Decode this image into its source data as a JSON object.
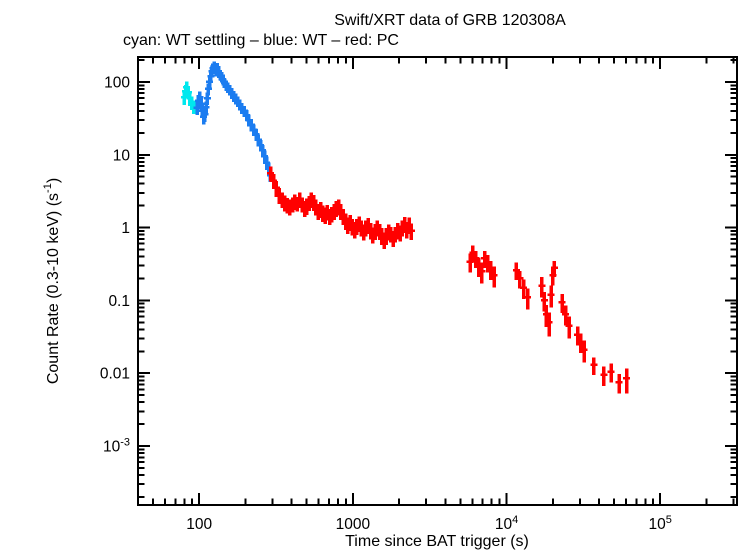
{
  "title": "Swift/XRT data of GRB 120308A",
  "subtitle": "cyan: WT settling – blue: WT – red: PC",
  "chart_data": {
    "type": "scatter",
    "title": "Swift/XRT data of GRB 120308A",
    "subtitle": "cyan: WT settling – blue: WT – red: PC",
    "xlabel": "Time since BAT trigger (s)",
    "ylabel_parts": [
      {
        "t": "Count Rate (0.3-10 keV) (s"
      },
      {
        "sup": "-1"
      },
      {
        "t": ")"
      }
    ],
    "xscale": "log",
    "yscale": "log",
    "xlim": [
      40,
      316000
    ],
    "ylim": [
      0.000155,
      220
    ],
    "grid": false,
    "legend_position": "subtitle-top-left",
    "background": "#ffffff",
    "axis_color": "#000000",
    "x_ticks": [
      {
        "v": 100,
        "t": "100"
      },
      {
        "v": 1000,
        "t": "1000"
      },
      {
        "v": 10000,
        "t": "10",
        "sup": "4"
      },
      {
        "v": 100000,
        "t": "10",
        "sup": "5"
      }
    ],
    "y_ticks": [
      {
        "v": 100,
        "t": "100"
      },
      {
        "v": 10,
        "t": "10"
      },
      {
        "v": 1,
        "t": "1"
      },
      {
        "v": 0.1,
        "t": "0.1"
      },
      {
        "v": 0.01,
        "t": "0.01"
      },
      {
        "v": 0.001,
        "t": "10",
        "sup": "-3"
      }
    ],
    "series": [
      {
        "id": "wt-settling",
        "name": "WT settling",
        "color": "#00e8ee",
        "points": [
          [
            80,
            62,
            14
          ],
          [
            81.5,
            75,
            16
          ],
          [
            83,
            84,
            18
          ],
          [
            85,
            72,
            15
          ],
          [
            87,
            60,
            13
          ],
          [
            89.5,
            52,
            11
          ],
          [
            92,
            46,
            10
          ]
        ]
      },
      {
        "id": "wt",
        "name": "WT",
        "color": "#1b7cf0",
        "points": [
          [
            97,
            44,
            9
          ],
          [
            99,
            55,
            11
          ],
          [
            101,
            62,
            12
          ],
          [
            103,
            50,
            10
          ],
          [
            105,
            40,
            8
          ],
          [
            107,
            33,
            7
          ],
          [
            109,
            36,
            8
          ],
          [
            111,
            45,
            9
          ],
          [
            113,
            60,
            12
          ],
          [
            115,
            80,
            15
          ],
          [
            117,
            100,
            18
          ],
          [
            119,
            120,
            20
          ],
          [
            121,
            140,
            23
          ],
          [
            123,
            155,
            25
          ],
          [
            125,
            165,
            26
          ],
          [
            127,
            150,
            24
          ],
          [
            129,
            142,
            23
          ],
          [
            131,
            158,
            25
          ],
          [
            134,
            135,
            22
          ],
          [
            137,
            125,
            20
          ],
          [
            140,
            118,
            19
          ],
          [
            143,
            108,
            18
          ],
          [
            146,
            98,
            16
          ],
          [
            150,
            90,
            15
          ],
          [
            154,
            84,
            14
          ],
          [
            158,
            78,
            13
          ],
          [
            163,
            70,
            12
          ],
          [
            168,
            64,
            11
          ],
          [
            173,
            59,
            10
          ],
          [
            178,
            54,
            9
          ],
          [
            184,
            49,
            8.5
          ],
          [
            190,
            44,
            7.5
          ],
          [
            197,
            40,
            7
          ],
          [
            204,
            35,
            6
          ],
          [
            211,
            30,
            5.5
          ],
          [
            219,
            26,
            5
          ],
          [
            227,
            22,
            4
          ],
          [
            235,
            19,
            3.5
          ],
          [
            243,
            16,
            3
          ],
          [
            251,
            13.5,
            2.5
          ],
          [
            259,
            11.5,
            2.2
          ],
          [
            267,
            9.5,
            1.9
          ],
          [
            275,
            7.8,
            1.6
          ],
          [
            283,
            6.4,
            1.4
          ],
          [
            291,
            5.4,
            1.2
          ]
        ]
      },
      {
        "id": "pc",
        "name": "PC",
        "color": "#ff0000",
        "points": [
          [
            292,
            5.6,
            1.3
          ],
          [
            305,
            4.4,
            1.0
          ],
          [
            318,
            3.5,
            0.85
          ],
          [
            332,
            2.8,
            0.7
          ],
          [
            346,
            2.45,
            0.6
          ],
          [
            360,
            2.2,
            0.55
          ],
          [
            375,
            2.05,
            0.5
          ],
          [
            390,
            1.95,
            0.48
          ],
          [
            405,
            2.1,
            0.5
          ],
          [
            420,
            2.3,
            0.55
          ],
          [
            436,
            2.15,
            0.5
          ],
          [
            452,
            2.45,
            0.6
          ],
          [
            468,
            2.1,
            0.5
          ],
          [
            485,
            1.85,
            0.45
          ],
          [
            502,
            2.0,
            0.5
          ],
          [
            520,
            2.2,
            0.52
          ],
          [
            538,
            2.45,
            0.6
          ],
          [
            556,
            2.25,
            0.55
          ],
          [
            575,
            1.95,
            0.48
          ],
          [
            595,
            1.7,
            0.42
          ],
          [
            616,
            1.8,
            0.45
          ],
          [
            637,
            1.6,
            0.4
          ],
          [
            659,
            1.5,
            0.38
          ],
          [
            682,
            1.65,
            0.4
          ],
          [
            706,
            1.45,
            0.36
          ],
          [
            731,
            1.55,
            0.38
          ],
          [
            756,
            1.7,
            0.42
          ],
          [
            782,
            1.85,
            0.45
          ],
          [
            809,
            1.95,
            0.48
          ],
          [
            837,
            1.7,
            0.42
          ],
          [
            866,
            1.45,
            0.36
          ],
          [
            896,
            1.25,
            0.32
          ],
          [
            927,
            1.1,
            0.28
          ],
          [
            959,
            1.2,
            0.3
          ],
          [
            992,
            1.05,
            0.27
          ],
          [
            1026,
            0.95,
            0.24
          ],
          [
            1062,
            1.05,
            0.26
          ],
          [
            1099,
            1.15,
            0.28
          ],
          [
            1137,
            1.0,
            0.25
          ],
          [
            1176,
            0.88,
            0.22
          ],
          [
            1217,
            1.0,
            0.25
          ],
          [
            1259,
            1.08,
            0.27
          ],
          [
            1303,
            0.92,
            0.23
          ],
          [
            1348,
            0.8,
            0.2
          ],
          [
            1395,
            0.9,
            0.22
          ],
          [
            1443,
            1.0,
            0.25
          ],
          [
            1493,
            0.9,
            0.22
          ],
          [
            1545,
            0.78,
            0.2
          ],
          [
            1598,
            0.68,
            0.17
          ],
          [
            1654,
            0.78,
            0.2
          ],
          [
            1711,
            0.88,
            0.22
          ],
          [
            1770,
            0.82,
            0.2
          ],
          [
            1831,
            0.72,
            0.18
          ],
          [
            1894,
            0.82,
            0.2
          ],
          [
            1960,
            0.92,
            0.23
          ],
          [
            2028,
            0.85,
            0.21
          ],
          [
            2098,
            1.0,
            0.25
          ],
          [
            2171,
            1.12,
            0.28
          ],
          [
            2246,
            0.95,
            0.24
          ],
          [
            2324,
            1.1,
            0.28
          ],
          [
            2405,
            0.9,
            0.23
          ],
          [
            5800,
            0.34,
            0.1
          ],
          [
            6050,
            0.45,
            0.12
          ],
          [
            6300,
            0.38,
            0.1
          ],
          [
            6600,
            0.3,
            0.09
          ],
          [
            6900,
            0.25,
            0.08
          ],
          [
            7200,
            0.38,
            0.1
          ],
          [
            7550,
            0.33,
            0.09
          ],
          [
            7900,
            0.27,
            0.08
          ],
          [
            8300,
            0.22,
            0.07
          ],
          [
            11600,
            0.26,
            0.07
          ],
          [
            12200,
            0.2,
            0.055
          ],
          [
            12900,
            0.15,
            0.045
          ],
          [
            13700,
            0.11,
            0.035
          ],
          [
            17000,
            0.16,
            0.05
          ],
          [
            17600,
            0.1,
            0.03
          ],
          [
            18200,
            0.065,
            0.022
          ],
          [
            18900,
            0.05,
            0.018
          ],
          [
            19500,
            0.12,
            0.04
          ],
          [
            20000,
            0.22,
            0.06
          ],
          [
            20500,
            0.28,
            0.07
          ],
          [
            23000,
            0.095,
            0.028
          ],
          [
            24200,
            0.065,
            0.02
          ],
          [
            25500,
            0.045,
            0.015
          ],
          [
            29000,
            0.034,
            0.01
          ],
          [
            30500,
            0.027,
            0.008
          ],
          [
            32000,
            0.021,
            0.007
          ],
          [
            37000,
            0.013,
            0.0035
          ],
          [
            43000,
            0.0095,
            0.0028
          ],
          [
            48000,
            0.0105,
            0.003
          ],
          [
            54000,
            0.0075,
            0.0022
          ],
          [
            60500,
            0.0085,
            0.0032
          ]
        ]
      }
    ]
  }
}
